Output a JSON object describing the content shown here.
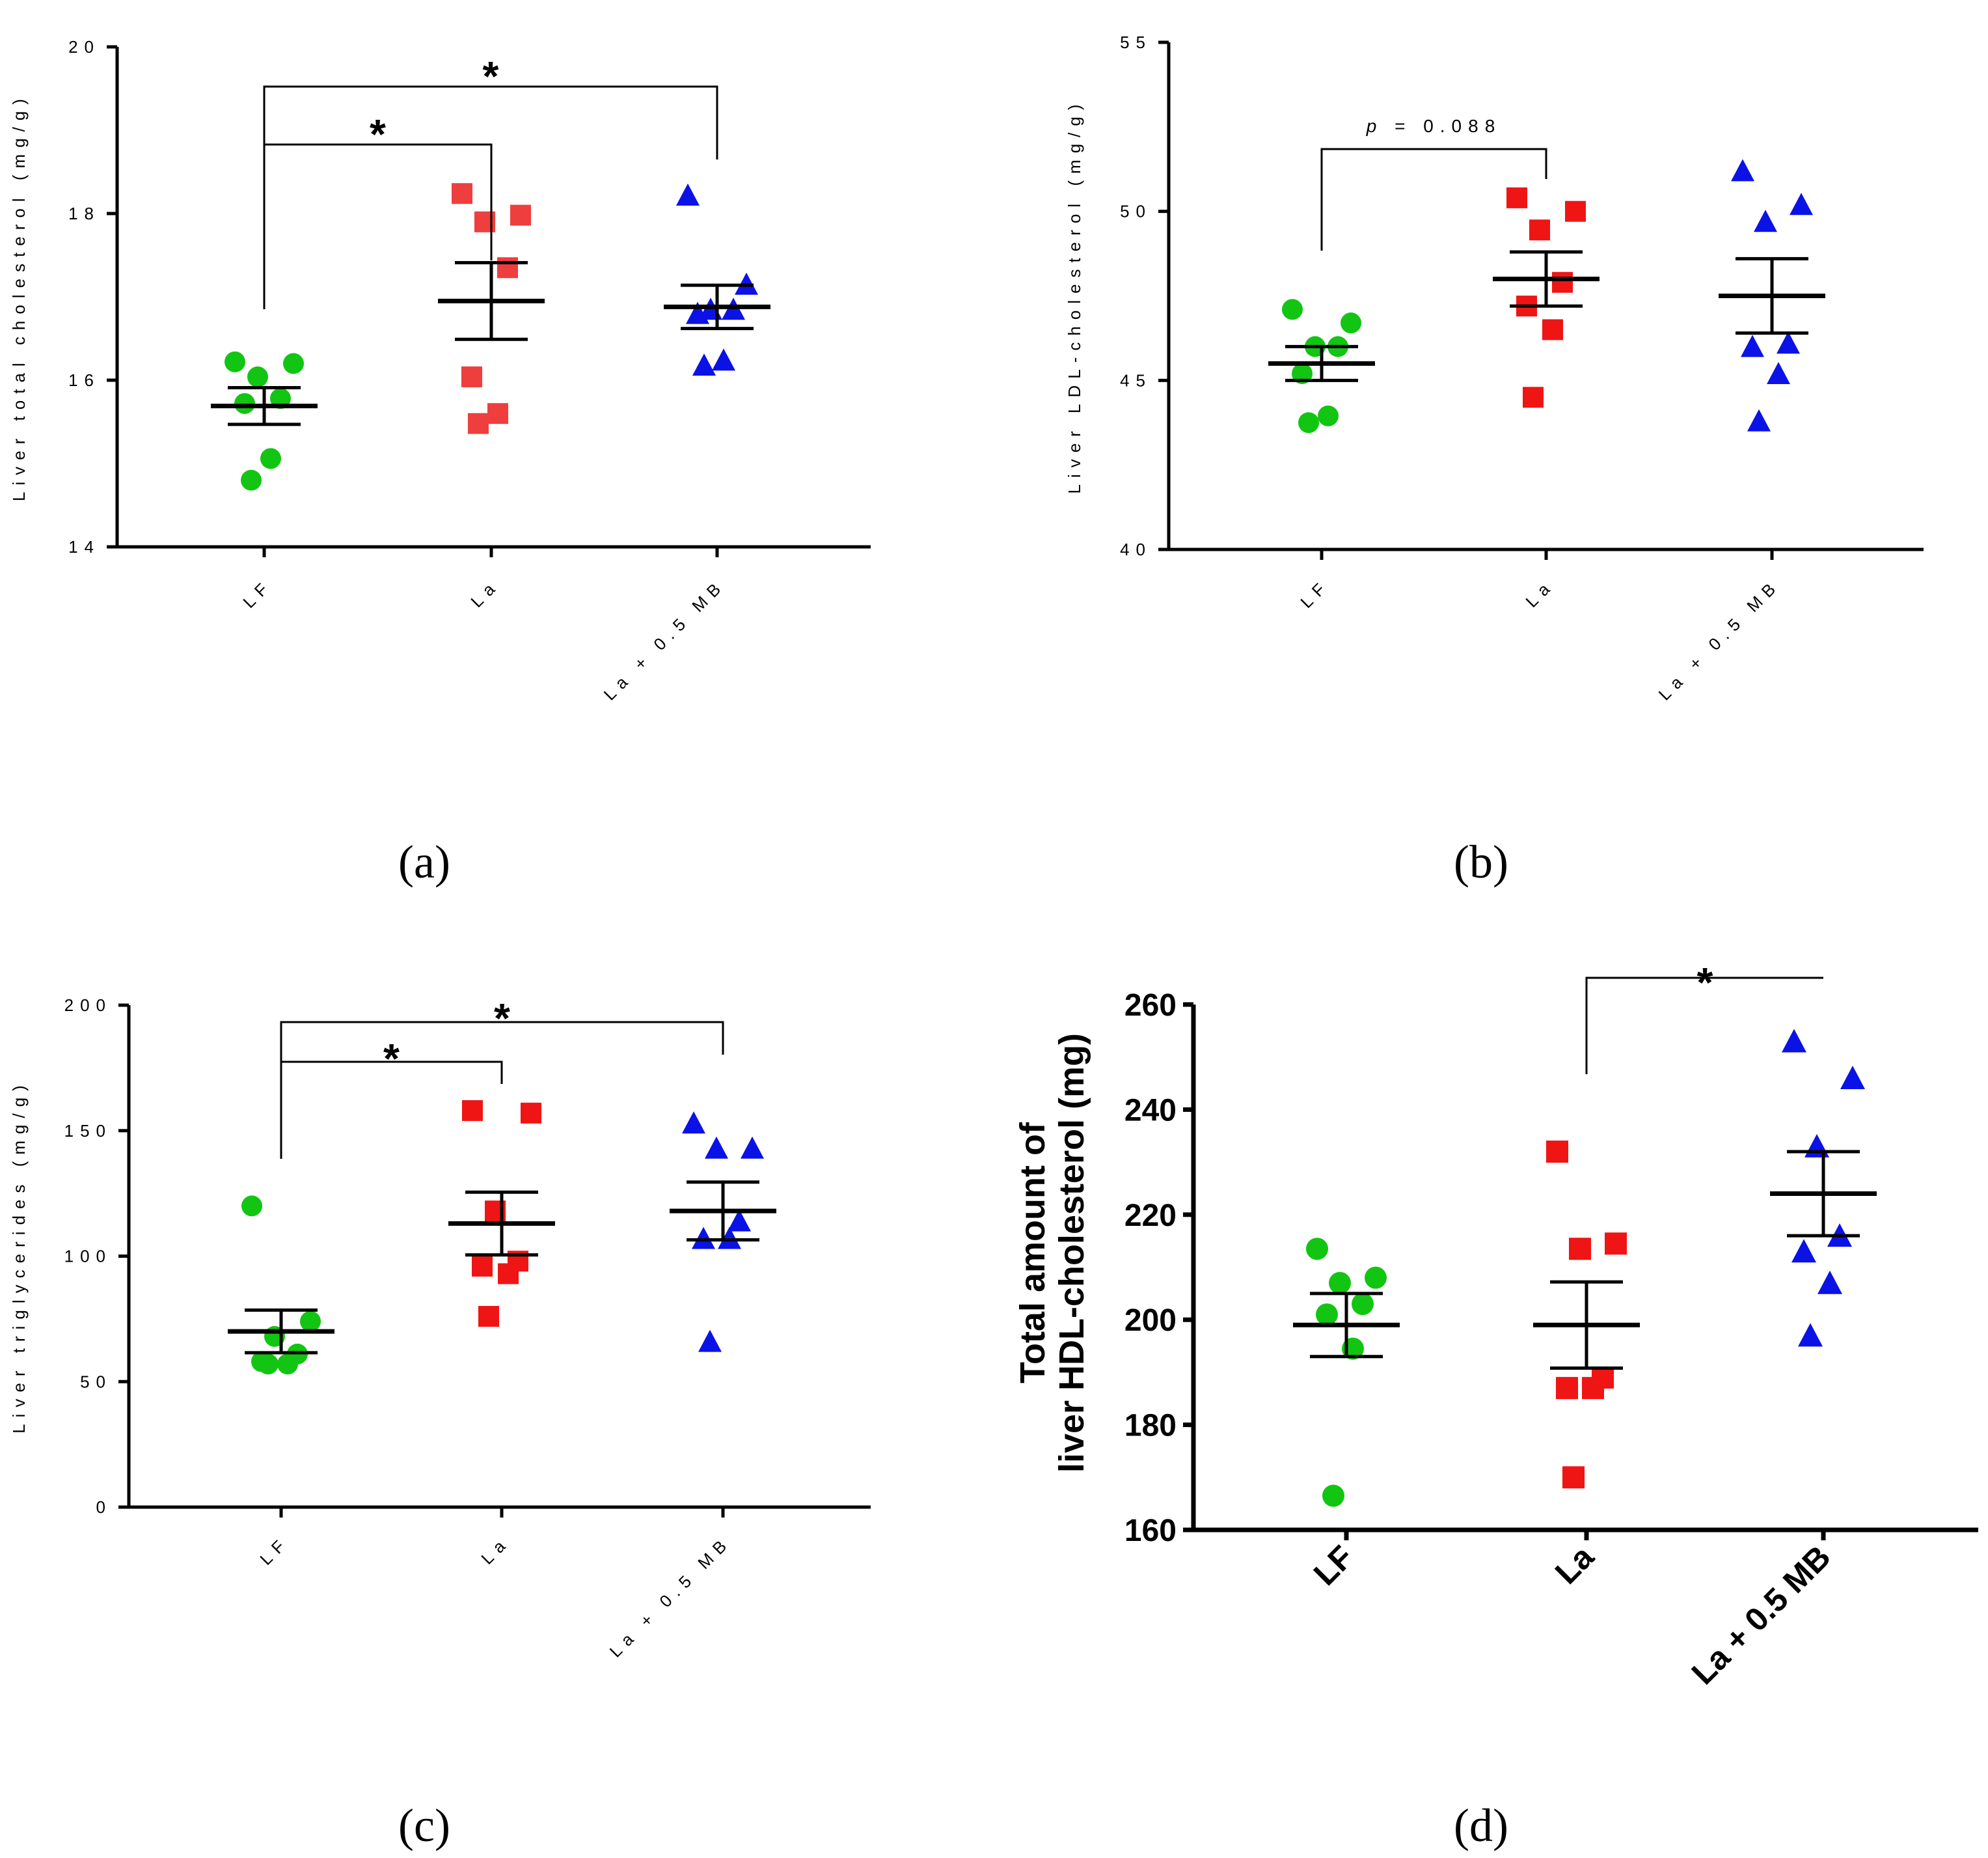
{
  "figure": {
    "panel_labels": [
      "(a)",
      "(b)",
      "(c)",
      "(d)"
    ]
  },
  "chart_data": [
    {
      "panel": "(a)",
      "type": "scatter",
      "ylabel": "Liver total cholesterol (mg/g)",
      "ylim": [
        14,
        20
      ],
      "yticks": [
        "14",
        "16",
        "18",
        "20"
      ],
      "categories": [
        "LF",
        "La",
        "La + 0.5 MB"
      ],
      "series": [
        {
          "name": "LF",
          "marker": "circle",
          "color": "#12c512",
          "values": [
            16.22,
            16.2,
            16.04,
            15.78,
            15.72,
            15.06,
            14.8
          ],
          "mean": 15.69,
          "sem": 0.22
        },
        {
          "name": "La",
          "marker": "square",
          "color": "#ef3e3e",
          "values": [
            18.24,
            17.98,
            17.9,
            17.35,
            16.04,
            15.6,
            15.48
          ],
          "mean": 16.95,
          "sem": 0.46
        },
        {
          "name": "La + 0.5 MB",
          "marker": "triangle",
          "color": "#0b12e6",
          "values": [
            18.22,
            17.15,
            16.85,
            16.85,
            16.8,
            16.24,
            16.18
          ],
          "mean": 16.88,
          "sem": 0.26
        }
      ],
      "annotations": [
        {
          "from": 0,
          "to": 1,
          "label": "*"
        },
        {
          "from": 0,
          "to": 2,
          "label": "*"
        }
      ]
    },
    {
      "panel": "(b)",
      "type": "scatter",
      "ylabel": "Liver LDL-cholesterol (mg/g)",
      "ylim": [
        40,
        55
      ],
      "yticks": [
        "40",
        "45",
        "50",
        "55"
      ],
      "categories": [
        "LF",
        "La",
        "La + 0.5 MB"
      ],
      "series": [
        {
          "name": "LF",
          "marker": "circle",
          "color": "#12c512",
          "values": [
            47.1,
            46.7,
            46.0,
            46.0,
            45.2,
            43.95,
            43.75
          ],
          "mean": 45.5,
          "sem": 0.5
        },
        {
          "name": "La",
          "marker": "square",
          "color": "#ef1515",
          "values": [
            50.4,
            50.0,
            49.45,
            47.9,
            47.2,
            46.5,
            44.5
          ],
          "mean": 48.0,
          "sem": 0.8
        },
        {
          "name": "La + 0.5 MB",
          "marker": "triangle",
          "color": "#0b12e6",
          "values": [
            51.2,
            50.2,
            49.7,
            46.1,
            46.0,
            45.2,
            43.8
          ],
          "mean": 47.5,
          "sem": 1.1
        }
      ],
      "annotations": [
        {
          "from": 0,
          "to": 1,
          "label_italic": "p",
          "label": "= 0.088"
        }
      ]
    },
    {
      "panel": "(c)",
      "type": "scatter",
      "ylabel": "Liver triglycerides (mg/g)",
      "ylim": [
        0,
        200
      ],
      "yticks": [
        "0",
        "50",
        "100",
        "150",
        "200"
      ],
      "categories": [
        "LF",
        "La",
        "La + 0.5 MB"
      ],
      "series": [
        {
          "name": "LF",
          "marker": "circle",
          "color": "#12c512",
          "values": [
            120,
            74,
            68,
            61,
            58,
            57,
            57
          ],
          "mean": 70,
          "sem": 8.5
        },
        {
          "name": "La",
          "marker": "square",
          "color": "#ef1515",
          "values": [
            158,
            157,
            118,
            98,
            96,
            93,
            76
          ],
          "mean": 113,
          "sem": 12.5
        },
        {
          "name": "La + 0.5 MB",
          "marker": "triangle",
          "color": "#0b12e6",
          "values": [
            153,
            143,
            143,
            114,
            107,
            107,
            66
          ],
          "mean": 118,
          "sem": 11.5
        }
      ],
      "annotations": [
        {
          "from": 0,
          "to": 1,
          "label": "*"
        },
        {
          "from": 0,
          "to": 2,
          "label": "*"
        }
      ]
    },
    {
      "panel": "(d)",
      "type": "scatter",
      "ylabel_lines": [
        "Total amount of",
        "liver HDL-cholesterol (mg)"
      ],
      "ylim": [
        160,
        260
      ],
      "yticks": [
        "160",
        "180",
        "200",
        "220",
        "240",
        "260"
      ],
      "categories": [
        "LF",
        "La",
        "La + 0.5 MB"
      ],
      "series": [
        {
          "name": "LF",
          "marker": "circle",
          "color": "#12c512",
          "values": [
            213.5,
            208,
            207,
            203,
            201,
            194.5,
            166.5
          ],
          "mean": 199,
          "sem": 6
        },
        {
          "name": "La",
          "marker": "square",
          "color": "#ef1515",
          "values": [
            232,
            214.5,
            213.5,
            189,
            187,
            187,
            170
          ],
          "mean": 199,
          "sem": 8.2
        },
        {
          "name": "La + 0.5 MB",
          "marker": "triangle",
          "color": "#0b12e6",
          "values": [
            253,
            246,
            233,
            216,
            213,
            207,
            197
          ],
          "mean": 224,
          "sem": 8
        }
      ],
      "annotations": [
        {
          "from": 1,
          "to": 2,
          "label": "*"
        }
      ]
    }
  ]
}
